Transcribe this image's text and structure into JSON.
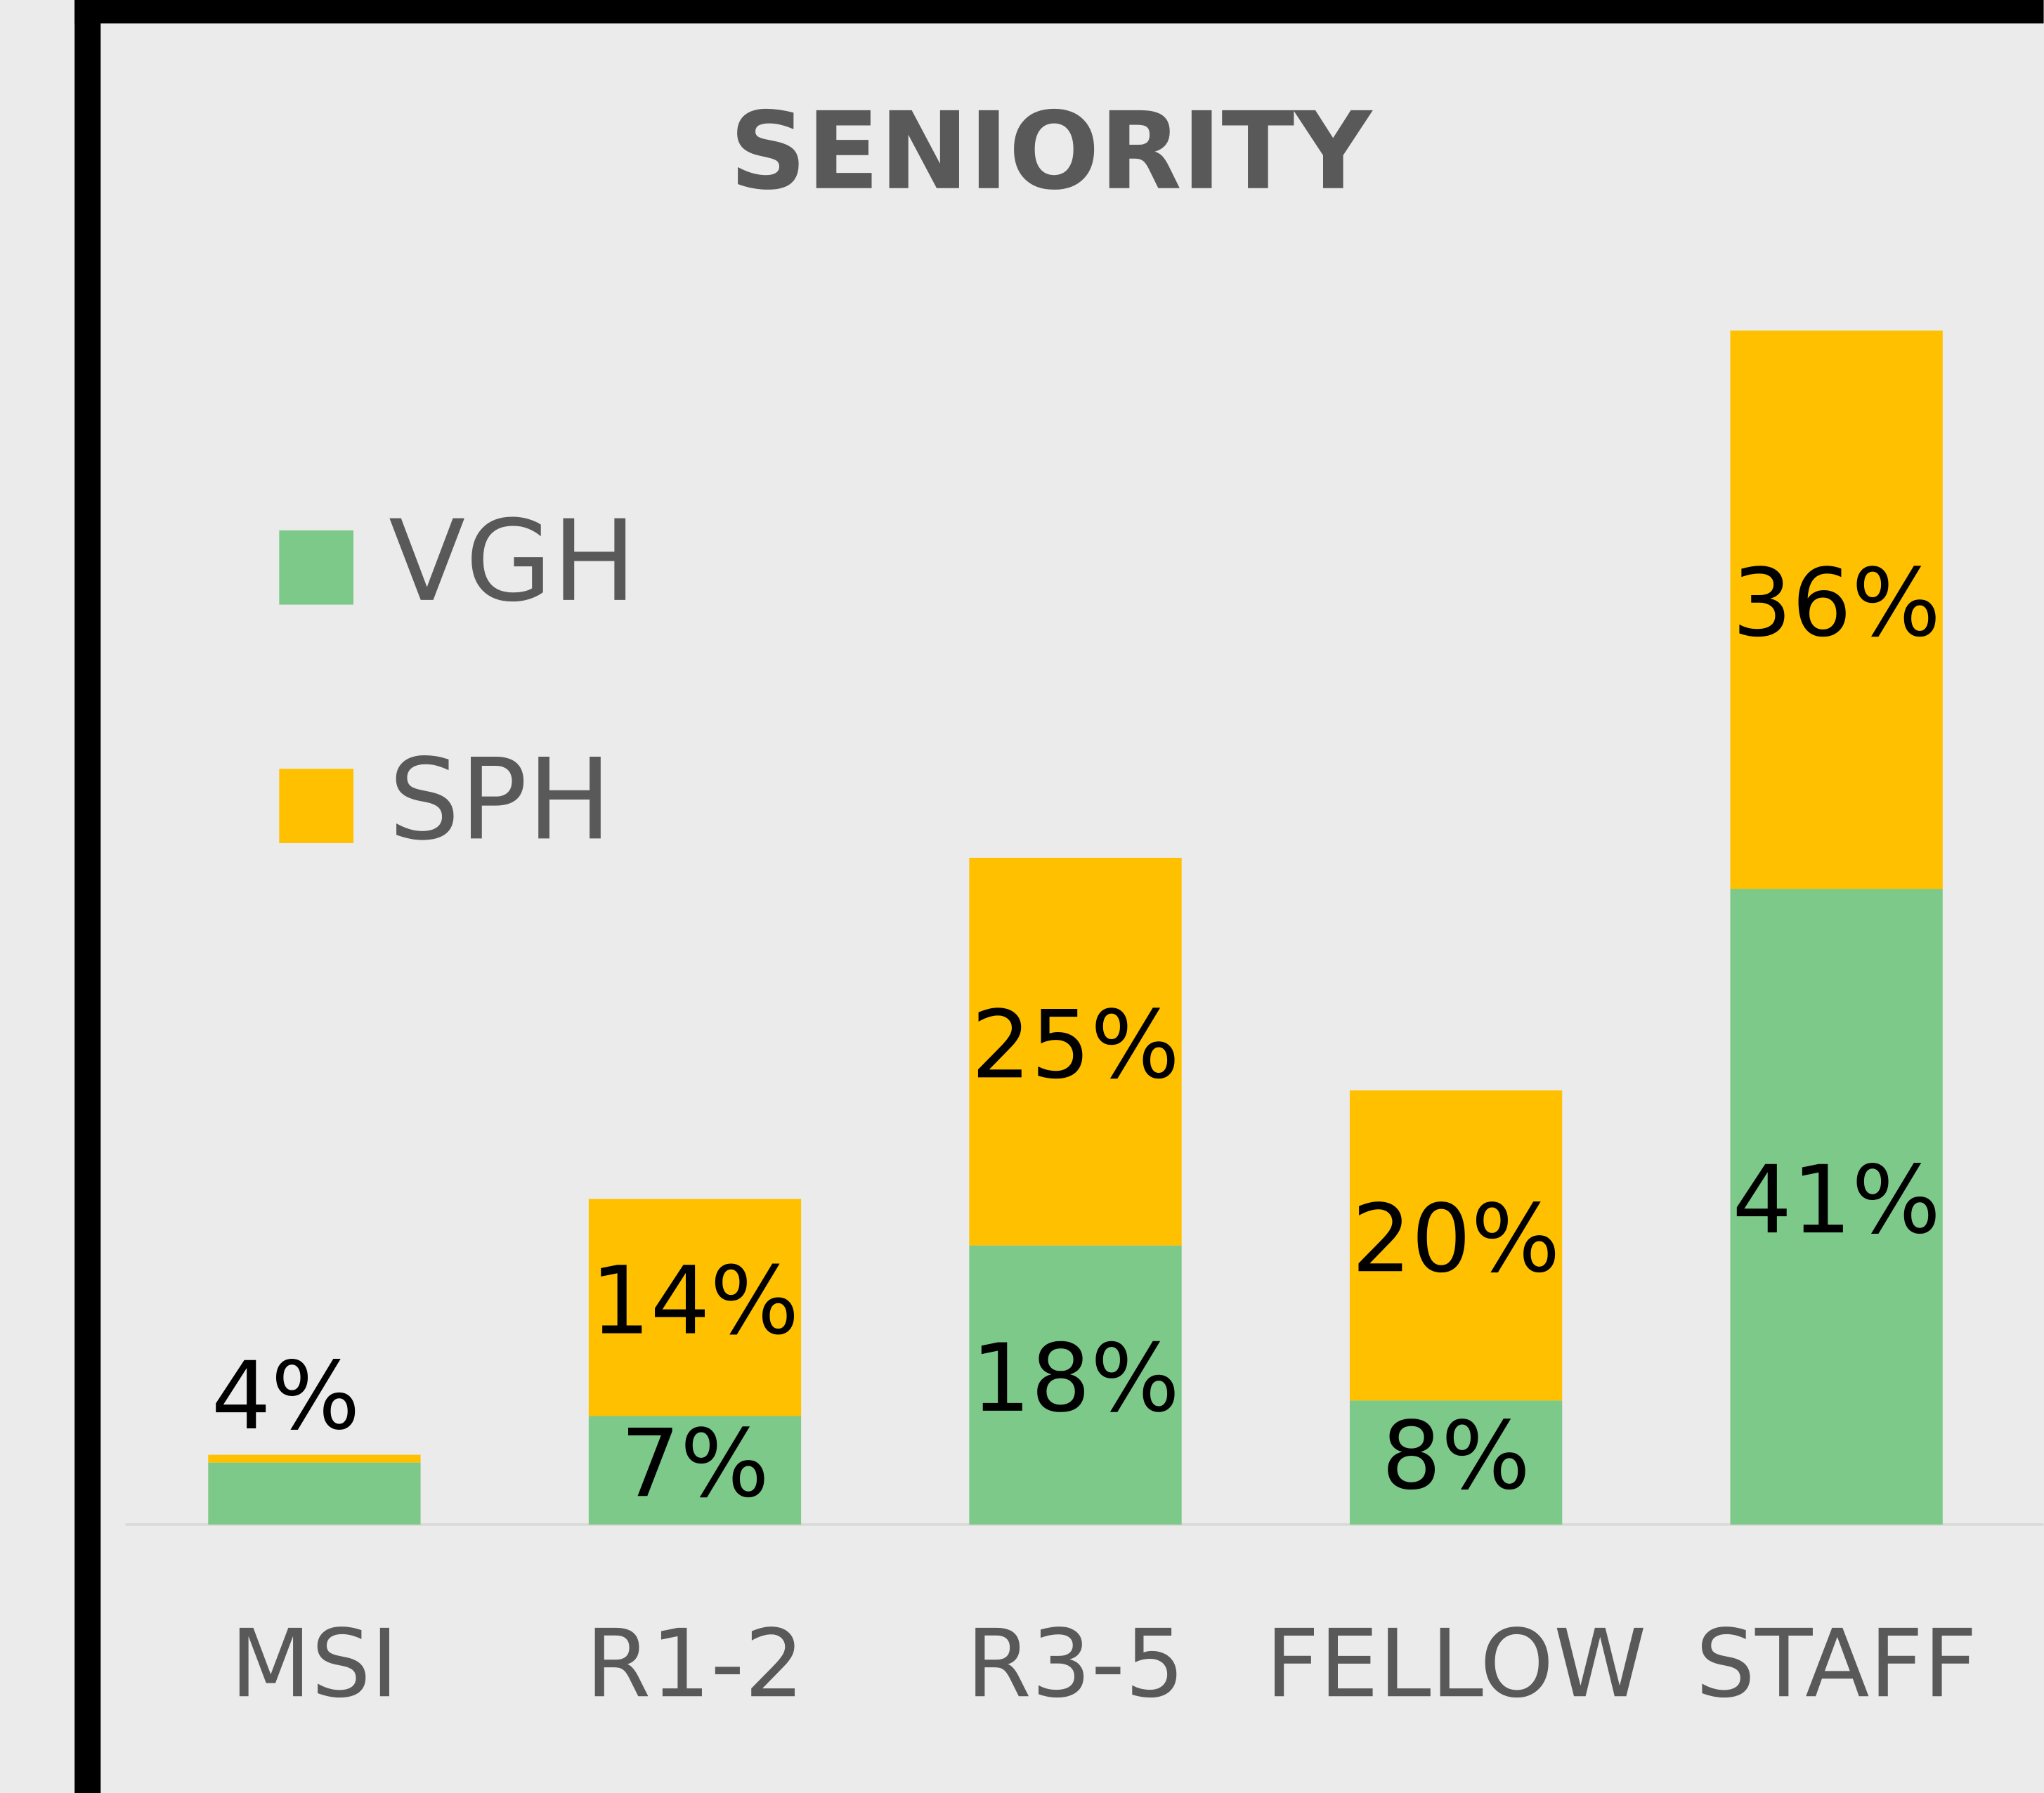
{
  "chart_data": {
    "type": "stacked_bar",
    "title": "SENIORITY",
    "categories": [
      "MSI",
      "R1-2",
      "R3-5",
      "FELLOW",
      "STAFF"
    ],
    "series": [
      {
        "name": "VGH",
        "color": "#7dc98a",
        "values": [
          4,
          7,
          18,
          8,
          41
        ],
        "value_labels": [
          "4%",
          "7%",
          "18%",
          "8%",
          "41%"
        ]
      },
      {
        "name": "SPH",
        "color": "#ffc000",
        "values": [
          0.5,
          14,
          25,
          20,
          36
        ],
        "value_labels": [
          null,
          "14%",
          "25%",
          "20%",
          "36%"
        ]
      }
    ],
    "ylim": [
      0,
      80
    ],
    "legend": "upper left"
  }
}
